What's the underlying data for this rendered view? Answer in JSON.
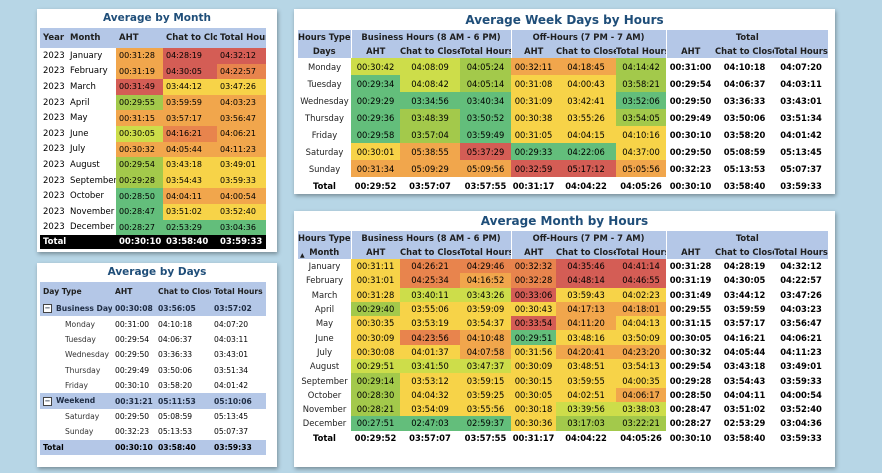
{
  "colors": {
    "green": "#63be7b",
    "lgreen": "#a3c94b",
    "ygreen": "#cddd4a",
    "yellow": "#f7d348",
    "orange": "#f1a64c",
    "dorange": "#e8844d",
    "red": "#d45d55",
    "lightrow": "#ffffff"
  },
  "month_panel": {
    "title": "Average by Month",
    "headers": [
      "Year",
      "Month",
      "AHT",
      "Chat to Close",
      "Total Hours"
    ],
    "rows": [
      [
        "2023",
        "January",
        "00:31:28",
        "04:28:19",
        "04:32:12"
      ],
      [
        "2023",
        "February",
        "00:31:19",
        "04:30:05",
        "04:22:57"
      ],
      [
        "2023",
        "March",
        "00:31:49",
        "03:44:12",
        "03:47:26"
      ],
      [
        "2023",
        "April",
        "00:29:55",
        "03:59:59",
        "04:03:23"
      ],
      [
        "2023",
        "May",
        "00:31:15",
        "03:57:17",
        "03:56:47"
      ],
      [
        "2023",
        "June",
        "00:30:05",
        "04:16:21",
        "04:06:21"
      ],
      [
        "2023",
        "July",
        "00:30:32",
        "04:05:44",
        "04:11:23"
      ],
      [
        "2023",
        "August",
        "00:29:54",
        "03:43:18",
        "03:49:01"
      ],
      [
        "2023",
        "September",
        "00:29:28",
        "03:54:43",
        "03:59:33"
      ],
      [
        "2023",
        "October",
        "00:28:50",
        "04:04:11",
        "04:00:54"
      ],
      [
        "2023",
        "November",
        "00:28:47",
        "03:51:02",
        "03:52:40"
      ],
      [
        "2023",
        "December",
        "00:28:27",
        "02:53:29",
        "03:04:36"
      ]
    ],
    "total": [
      "Total",
      "",
      "00:30:10",
      "03:58:40",
      "03:59:33"
    ]
  },
  "days_panel": {
    "title": "Average by Days",
    "headers": [
      "Day Type",
      "AHT",
      "Chat to Close",
      "Total Hours"
    ],
    "groups": [
      {
        "name": "Business Day",
        "toggle": "−",
        "values": [
          "00:30:08",
          "03:56:05",
          "03:57:02"
        ],
        "rows": [
          [
            "Monday",
            "00:31:00",
            "04:10:18",
            "04:07:20"
          ],
          [
            "Tuesday",
            "00:29:54",
            "04:06:37",
            "04:03:11"
          ],
          [
            "Wednesday",
            "00:29:50",
            "03:36:33",
            "03:43:01"
          ],
          [
            "Thursday",
            "00:29:49",
            "03:50:06",
            "03:51:34"
          ],
          [
            "Friday",
            "00:30:10",
            "03:58:20",
            "04:01:42"
          ]
        ]
      },
      {
        "name": "Weekend",
        "toggle": "−",
        "values": [
          "00:31:21",
          "05:11:53",
          "05:10:06"
        ],
        "rows": [
          [
            "Saturday",
            "00:29:50",
            "05:08:59",
            "05:13:45"
          ],
          [
            "Sunday",
            "00:32:23",
            "05:13:53",
            "05:07:37"
          ]
        ]
      }
    ],
    "total": [
      "Total",
      "00:30:10",
      "03:58:40",
      "03:59:33"
    ]
  },
  "week_panel": {
    "title": "Average Week Days by Hours",
    "corner_top": "Hours Type",
    "corner_bottom": "Days",
    "groups": [
      "Business Hours (8 AM - 6 PM)",
      "Off-Hours (7 PM - 7 AM)",
      "Total"
    ],
    "subheaders": [
      "AHT",
      "Chat to Close",
      "Total Hours"
    ],
    "rows": [
      [
        "Monday",
        "00:30:42",
        "04:08:09",
        "04:05:24",
        "00:32:11",
        "04:18:45",
        "04:14:42",
        "00:31:00",
        "04:10:18",
        "04:07:20"
      ],
      [
        "Tuesday",
        "00:29:34",
        "04:08:42",
        "04:05:14",
        "00:31:08",
        "04:00:43",
        "03:58:21",
        "00:29:54",
        "04:06:37",
        "04:03:11"
      ],
      [
        "Wednesday",
        "00:29:29",
        "03:34:56",
        "03:40:34",
        "00:31:09",
        "03:42:41",
        "03:52:06",
        "00:29:50",
        "03:36:33",
        "03:43:01"
      ],
      [
        "Thursday",
        "00:29:36",
        "03:48:39",
        "03:50:52",
        "00:30:38",
        "03:55:26",
        "03:54:05",
        "00:29:49",
        "03:50:06",
        "03:51:34"
      ],
      [
        "Friday",
        "00:29:58",
        "03:57:04",
        "03:59:49",
        "00:31:05",
        "04:04:15",
        "04:10:16",
        "00:30:10",
        "03:58:20",
        "04:01:42"
      ],
      [
        "Saturday",
        "00:30:01",
        "05:38:55",
        "05:37:29",
        "00:29:33",
        "04:22:06",
        "04:37:00",
        "00:29:50",
        "05:08:59",
        "05:13:45"
      ],
      [
        "Sunday",
        "00:31:34",
        "05:09:29",
        "05:09:56",
        "00:32:59",
        "05:17:12",
        "05:05:56",
        "00:32:23",
        "05:13:53",
        "05:07:37"
      ]
    ],
    "colors": [
      [
        "yg",
        "yg",
        "lg",
        "o",
        "o",
        "lg"
      ],
      [
        "g",
        "yg",
        "lg",
        "y",
        "y",
        "lg"
      ],
      [
        "g",
        "g",
        "g",
        "y",
        "y",
        "g"
      ],
      [
        "g",
        "lg",
        "g",
        "y",
        "y",
        "lg"
      ],
      [
        "g",
        "lg",
        "g",
        "y",
        "y",
        "y"
      ],
      [
        "y",
        "o",
        "r",
        "g",
        "g",
        "y"
      ],
      [
        "o",
        "o",
        "o",
        "r",
        "r",
        "o"
      ]
    ],
    "total": [
      "Total",
      "00:29:52",
      "03:57:07",
      "03:57:55",
      "00:31:17",
      "04:04:22",
      "04:05:26",
      "00:30:10",
      "03:58:40",
      "03:59:33"
    ]
  },
  "mh_panel": {
    "title": "Average Month by Hours",
    "corner_top": "Hours Type",
    "corner_bottom": "Month",
    "sort_glyph": "▲",
    "groups": [
      "Business Hours (8 AM - 6 PM)",
      "Off-Hours (7 PM - 7 AM)",
      "Total"
    ],
    "subheaders": [
      "AHT",
      "Chat to Close",
      "Total Hours"
    ],
    "rows": [
      [
        "January",
        "00:31:11",
        "04:26:21",
        "04:29:46",
        "00:32:32",
        "04:35:46",
        "04:41:14",
        "00:31:28",
        "04:28:19",
        "04:32:12"
      ],
      [
        "February",
        "00:31:01",
        "04:25:34",
        "04:16:52",
        "00:32:28",
        "04:48:14",
        "04:46:55",
        "00:31:19",
        "04:30:05",
        "04:22:57"
      ],
      [
        "March",
        "00:31:28",
        "03:40:11",
        "03:43:26",
        "00:33:06",
        "03:59:43",
        "04:02:23",
        "00:31:49",
        "03:44:12",
        "03:47:26"
      ],
      [
        "April",
        "00:29:40",
        "03:55:06",
        "03:59:09",
        "00:30:43",
        "04:17:13",
        "04:18:01",
        "00:29:55",
        "03:59:59",
        "04:03:23"
      ],
      [
        "May",
        "00:30:35",
        "03:53:19",
        "03:54:37",
        "00:33:54",
        "04:11:20",
        "04:04:13",
        "00:31:15",
        "03:57:17",
        "03:56:47"
      ],
      [
        "June",
        "00:30:09",
        "04:23:56",
        "04:10:48",
        "00:29:51",
        "03:48:16",
        "03:50:09",
        "00:30:05",
        "04:16:21",
        "04:06:21"
      ],
      [
        "July",
        "00:30:08",
        "04:01:37",
        "04:07:58",
        "00:31:56",
        "04:20:41",
        "04:23:20",
        "00:30:32",
        "04:05:44",
        "04:11:23"
      ],
      [
        "August",
        "00:29:51",
        "03:41:50",
        "03:47:37",
        "00:30:09",
        "03:48:51",
        "03:54:13",
        "00:29:54",
        "03:43:18",
        "03:49:01"
      ],
      [
        "September",
        "00:29:14",
        "03:53:12",
        "03:59:15",
        "00:30:15",
        "03:59:55",
        "04:00:35",
        "00:29:28",
        "03:54:43",
        "03:59:33"
      ],
      [
        "October",
        "00:28:30",
        "04:04:32",
        "03:59:25",
        "00:30:05",
        "04:02:51",
        "04:06:17",
        "00:28:50",
        "04:04:11",
        "04:00:54"
      ],
      [
        "November",
        "00:28:21",
        "03:54:09",
        "03:55:56",
        "00:30:18",
        "03:39:56",
        "03:38:03",
        "00:28:47",
        "03:51:02",
        "03:52:40"
      ],
      [
        "December",
        "00:27:51",
        "02:47:03",
        "02:59:37",
        "00:30:36",
        "03:17:03",
        "03:22:21",
        "00:28:27",
        "02:53:29",
        "03:04:36"
      ]
    ],
    "colors": [
      [
        "y",
        "do",
        "do",
        "do",
        "r",
        "r"
      ],
      [
        "y",
        "do",
        "o",
        "do",
        "r",
        "r"
      ],
      [
        "y",
        "yg",
        "yg",
        "r",
        "y",
        "y"
      ],
      [
        "lg",
        "y",
        "y",
        "y",
        "o",
        "o"
      ],
      [
        "y",
        "y",
        "y",
        "r",
        "o",
        "y"
      ],
      [
        "y",
        "do",
        "o",
        "g",
        "y",
        "y"
      ],
      [
        "y",
        "y",
        "o",
        "y",
        "o",
        "o"
      ],
      [
        "yg",
        "yg",
        "yg",
        "y",
        "y",
        "y"
      ],
      [
        "lg",
        "y",
        "y",
        "y",
        "y",
        "y"
      ],
      [
        "lg",
        "y",
        "y",
        "y",
        "y",
        "o"
      ],
      [
        "lg",
        "y",
        "y",
        "y",
        "yg",
        "yg"
      ],
      [
        "g",
        "g",
        "g",
        "y",
        "lg",
        "lg"
      ]
    ],
    "total": [
      "Total",
      "00:29:52",
      "03:57:07",
      "03:57:55",
      "00:31:17",
      "04:04:22",
      "04:05:26",
      "00:30:10",
      "03:58:40",
      "03:59:33"
    ]
  }
}
